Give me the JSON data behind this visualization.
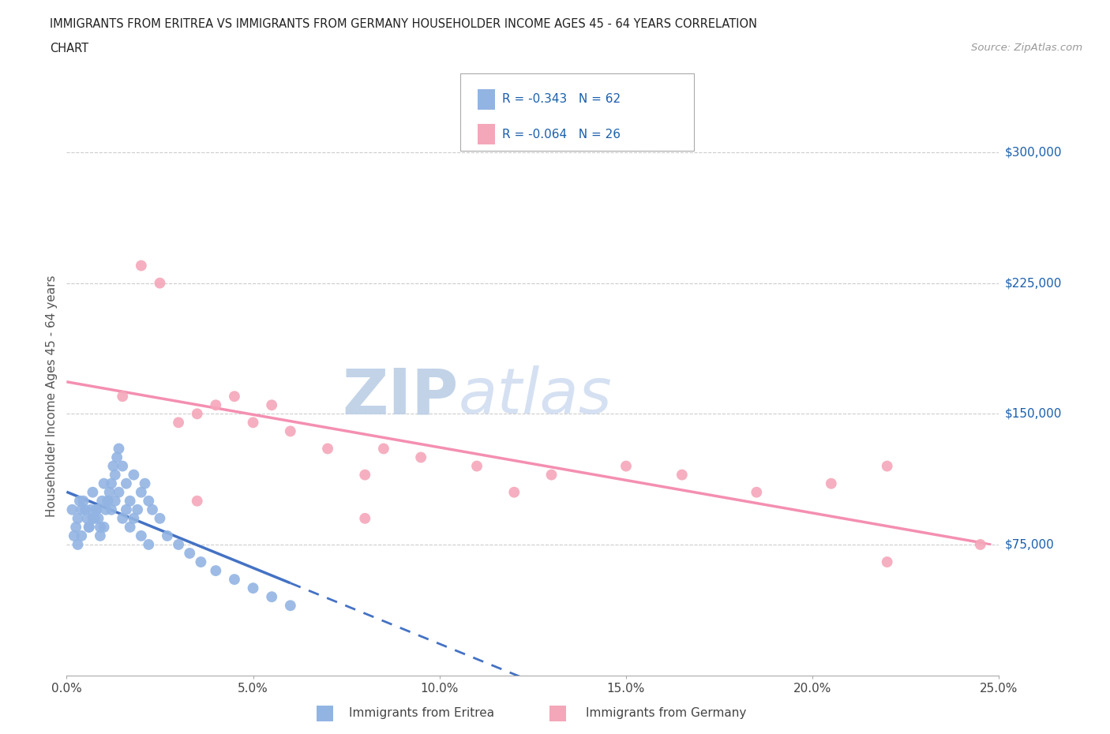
{
  "title_line1": "IMMIGRANTS FROM ERITREA VS IMMIGRANTS FROM GERMANY HOUSEHOLDER INCOME AGES 45 - 64 YEARS CORRELATION",
  "title_line2": "CHART",
  "source_text": "Source: ZipAtlas.com",
  "ylabel": "Householder Income Ages 45 - 64 years",
  "xlabel_vals": [
    0.0,
    5.0,
    10.0,
    15.0,
    20.0,
    25.0
  ],
  "ytick_labels": [
    "$75,000",
    "$150,000",
    "$225,000",
    "$300,000"
  ],
  "ytick_vals": [
    75000,
    150000,
    225000,
    300000
  ],
  "legend1_color": "#92b4e3",
  "legend2_color": "#f4a7b9",
  "legend1_label": "Immigrants from Eritrea",
  "legend2_label": "Immigrants from Germany",
  "r1": "-0.343",
  "n1": "62",
  "r2": "-0.064",
  "n2": "26",
  "watermark_color": "#ccd9ee",
  "line1_color": "#4472c4",
  "line2_color": "#f48fb1",
  "background_color": "#ffffff",
  "title_color": "#222222",
  "grid_color": "#cccccc",
  "scatter_color1": "#92b4e3",
  "scatter_color2": "#f4a7b9",
  "eritrea_x": [
    0.15,
    0.2,
    0.25,
    0.3,
    0.35,
    0.4,
    0.45,
    0.5,
    0.55,
    0.6,
    0.65,
    0.7,
    0.75,
    0.8,
    0.85,
    0.9,
    0.95,
    1.0,
    1.05,
    1.1,
    1.15,
    1.2,
    1.25,
    1.3,
    1.35,
    1.4,
    1.5,
    1.6,
    1.7,
    1.8,
    1.9,
    2.0,
    2.1,
    2.2,
    2.3,
    2.5,
    2.7,
    3.0,
    3.3,
    3.6,
    4.0,
    4.5,
    5.0,
    5.5,
    6.0,
    0.3,
    0.4,
    0.6,
    0.7,
    0.8,
    0.9,
    1.0,
    1.1,
    1.2,
    1.3,
    1.4,
    1.5,
    1.6,
    1.7,
    1.8,
    2.0,
    2.2
  ],
  "eritrea_y": [
    95000,
    80000,
    85000,
    90000,
    100000,
    95000,
    100000,
    95000,
    90000,
    85000,
    95000,
    105000,
    90000,
    95000,
    90000,
    85000,
    100000,
    110000,
    95000,
    100000,
    105000,
    110000,
    120000,
    115000,
    125000,
    130000,
    120000,
    110000,
    100000,
    115000,
    95000,
    105000,
    110000,
    100000,
    95000,
    90000,
    80000,
    75000,
    70000,
    65000,
    60000,
    55000,
    50000,
    45000,
    40000,
    75000,
    80000,
    85000,
    90000,
    95000,
    80000,
    85000,
    100000,
    95000,
    100000,
    105000,
    90000,
    95000,
    85000,
    90000,
    80000,
    75000
  ],
  "germany_x": [
    1.5,
    2.0,
    2.5,
    3.0,
    3.5,
    4.0,
    4.5,
    5.0,
    5.5,
    6.0,
    7.0,
    8.0,
    8.5,
    9.5,
    11.0,
    12.0,
    13.0,
    15.0,
    16.5,
    18.5,
    20.5,
    22.0,
    24.5,
    3.5,
    8.0,
    22.0
  ],
  "germany_y": [
    160000,
    235000,
    225000,
    145000,
    150000,
    155000,
    160000,
    145000,
    155000,
    140000,
    130000,
    115000,
    130000,
    125000,
    120000,
    105000,
    115000,
    120000,
    115000,
    105000,
    110000,
    120000,
    75000,
    100000,
    90000,
    65000
  ]
}
